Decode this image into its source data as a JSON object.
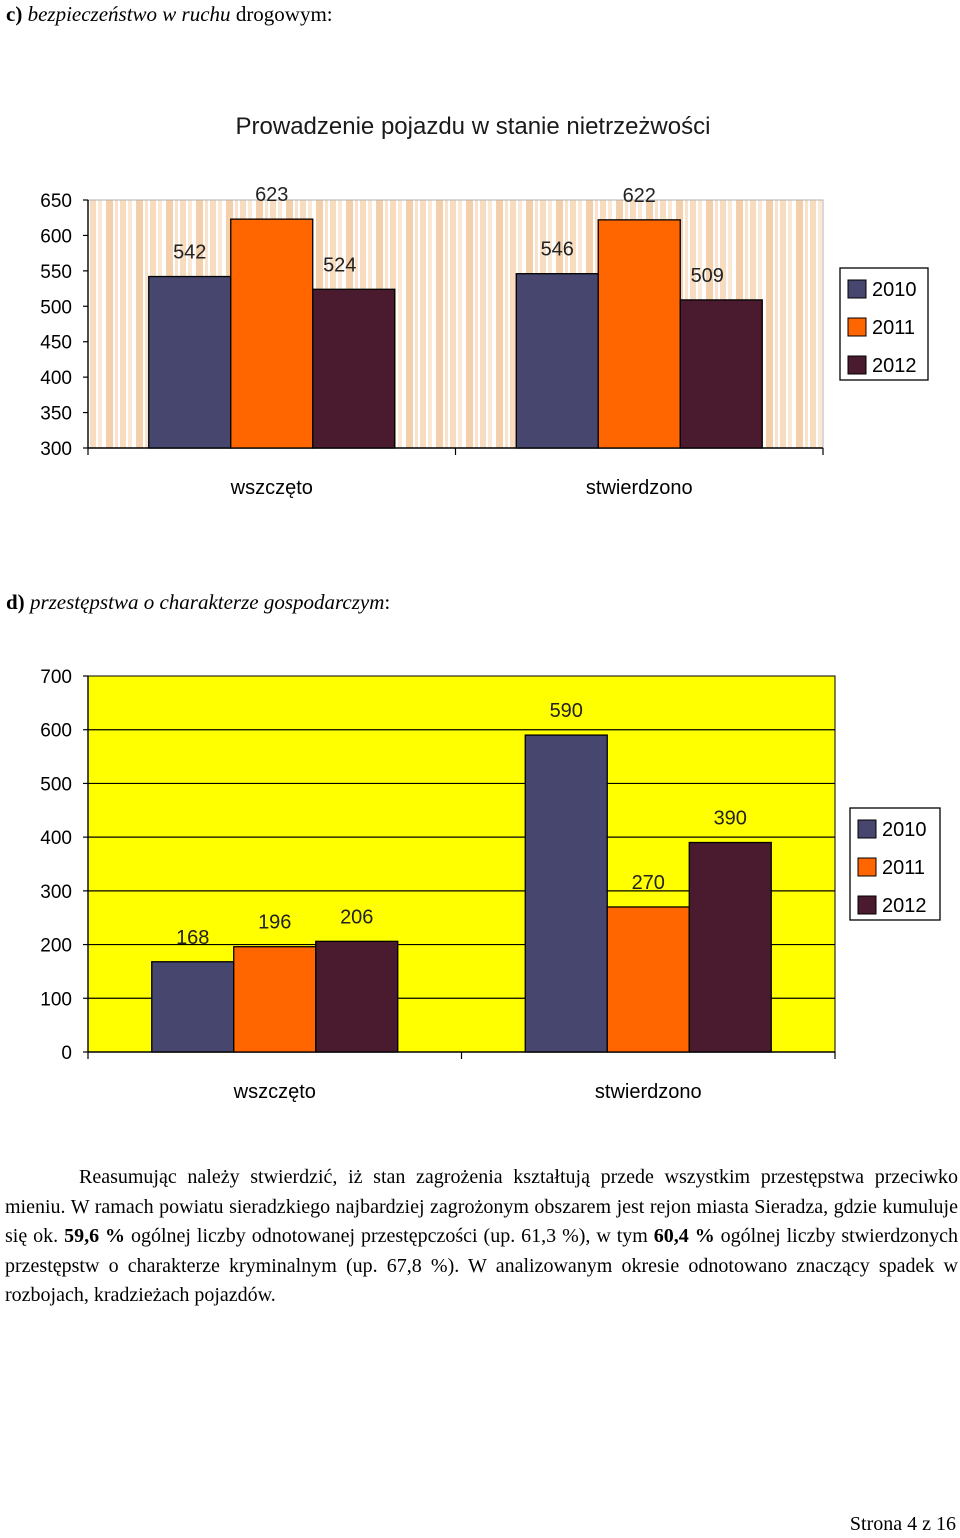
{
  "section_c": {
    "letter": "c)",
    "label_italic": "bezpieczeństwo w ruchu",
    "label_rest": " drogowym:"
  },
  "section_d": {
    "letter": "d)",
    "label_italic": "przestępstwa o charakterze gospodarczym",
    "label_rest": ":"
  },
  "chart_data": [
    {
      "type": "bar",
      "title": "Prowadzenie pojazdu w stanie nietrzeżwości",
      "categories": [
        "wszczęto",
        "stwierdzono"
      ],
      "series": [
        {
          "name": "2010",
          "values": [
            542,
            546
          ],
          "color": "#47466f"
        },
        {
          "name": "2011",
          "values": [
            623,
            622
          ],
          "color": "#ff6600"
        },
        {
          "name": "2012",
          "values": [
            524,
            509
          ],
          "color": "#4a1a2e"
        }
      ],
      "ylim": [
        300,
        650
      ],
      "yticks": [
        "300",
        "350",
        "400",
        "450",
        "500",
        "550",
        "600",
        "650"
      ],
      "legend": "right",
      "background": "striped-wood"
    },
    {
      "type": "bar",
      "title": "",
      "categories": [
        "wszczęto",
        "stwierdzono"
      ],
      "series": [
        {
          "name": "2010",
          "values": [
            168,
            590
          ],
          "color": "#47466f"
        },
        {
          "name": "2011",
          "values": [
            196,
            270
          ],
          "color": "#ff6600"
        },
        {
          "name": "2012",
          "values": [
            206,
            390
          ],
          "color": "#4a1a2e"
        }
      ],
      "ylim": [
        0,
        700
      ],
      "yticks": [
        "0",
        "100",
        "200",
        "300",
        "400",
        "500",
        "600",
        "700"
      ],
      "legend": "right",
      "background": "#ffff00"
    }
  ],
  "paragraph": {
    "t1": "Reasumując należy stwierdzić, iż stan zagrożenia kształtują przede wszystkim przestępstwa przeciwko mieniu. W ramach powiatu sieradzkiego najbardziej zagrożonym obszarem jest rejon miasta Sieradza, gdzie kumuluje się ok. ",
    "b1": "59,6 %",
    "t2": " ogólnej liczby odnotowanej przestępczości (up. 61,3 %), w tym ",
    "b2": "60,4 %",
    "t3": " ogólnej liczby stwierdzonych przestępstw o charakterze kryminalnym (up. 67,8 %). W analizowanym okresie odnotowano znaczący spadek w rozbojach, kradzieżach pojazdów."
  },
  "footer": "Strona 4 z 16"
}
